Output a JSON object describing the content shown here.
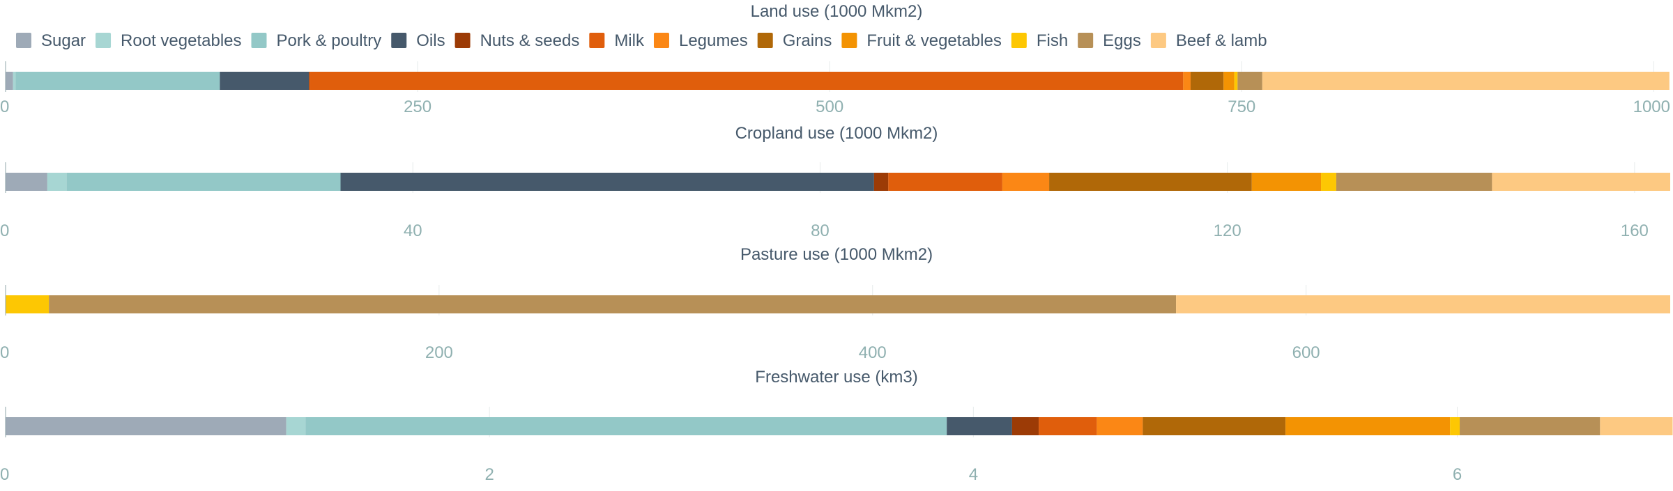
{
  "chart_data": {
    "type": "bar",
    "orientation": "horizontal",
    "stacked": true,
    "legend": {
      "position": "top",
      "items": [
        {
          "name": "Sugar",
          "color": "#9eaab7"
        },
        {
          "name": "Root vegetables",
          "color": "#a7d6d3"
        },
        {
          "name": "Pork & poultry",
          "color": "#93c8c7"
        },
        {
          "name": "Oils",
          "color": "#46596b"
        },
        {
          "name": "Nuts & seeds",
          "color": "#9c3b06"
        },
        {
          "name": "Milk",
          "color": "#e05e0c"
        },
        {
          "name": "Legumes",
          "color": "#fb8715"
        },
        {
          "name": "Grains",
          "color": "#b06808"
        },
        {
          "name": "Fruit & vegetables",
          "color": "#f39303"
        },
        {
          "name": "Fish",
          "color": "#fdc703"
        },
        {
          "name": "Eggs",
          "color": "#b79057"
        },
        {
          "name": "Beef & lamb",
          "color": "#fdc982"
        }
      ]
    },
    "panels": [
      {
        "title": "Land use (1000 Mkm2)",
        "xlim": [
          0,
          1010
        ],
        "ticks": [
          0,
          250,
          500,
          750,
          1000
        ],
        "tick_labels": [
          "0",
          "250",
          "500",
          "750",
          "1000"
        ],
        "grid": true,
        "values": {
          "Sugar": 4.5,
          "Root vegetables": 1.5,
          "Pork & poultry": 124,
          "Oils": 54,
          "Nuts & seeds": 0.5,
          "Milk": 530,
          "Legumes": 4.5,
          "Grains": 20,
          "Fruit & vegetables": 6.5,
          "Fish": 2,
          "Eggs": 15,
          "Beef & lamb": 247
        }
      },
      {
        "title": "Cropland use (1000 Mkm2)",
        "xlim": [
          0,
          163.5
        ],
        "ticks": [
          0,
          40,
          80,
          120,
          160
        ],
        "tick_labels": [
          "0",
          "40",
          "80",
          "120",
          "160"
        ],
        "grid": true,
        "values": {
          "Sugar": 4.1,
          "Root vegetables": 1.9,
          "Pork & poultry": 26.9,
          "Oils": 52.4,
          "Nuts & seeds": 1.4,
          "Milk": 11.2,
          "Legumes": 4.6,
          "Grains": 19.9,
          "Fruit & vegetables": 6.8,
          "Fish": 1.5,
          "Eggs": 15.3,
          "Beef & lamb": 17.5
        }
      },
      {
        "title": "Pasture use (1000 Mkm2)",
        "xlim": [
          0,
          768
        ],
        "ticks": [
          0,
          200,
          400,
          600
        ],
        "tick_labels": [
          "0",
          "200",
          "400",
          "600"
        ],
        "grid": true,
        "values": {
          "Sugar": 0,
          "Root vegetables": 0,
          "Pork & poultry": 0,
          "Oils": 0,
          "Nuts & seeds": 0,
          "Milk": 0,
          "Legumes": 0,
          "Grains": 0,
          "Fruit & vegetables": 0,
          "Fish": 20,
          "Eggs": 520,
          "Beef & lamb": 228
        }
      },
      {
        "title": "Freshwater use (km3)",
        "xlim": [
          0,
          6.88
        ],
        "ticks": [
          0,
          2,
          4,
          6
        ],
        "tick_labels": [
          "0",
          "2",
          "4",
          "6"
        ],
        "grid": true,
        "values": {
          "Sugar": 1.16,
          "Root vegetables": 0.08,
          "Pork & poultry": 2.65,
          "Oils": 0.27,
          "Nuts & seeds": 0.11,
          "Milk": 0.24,
          "Legumes": 0.19,
          "Grains": 0.59,
          "Fruit & vegetables": 0.68,
          "Fish": 0.04,
          "Eggs": 0.58,
          "Beef & lamb": 0.3
        }
      }
    ]
  }
}
